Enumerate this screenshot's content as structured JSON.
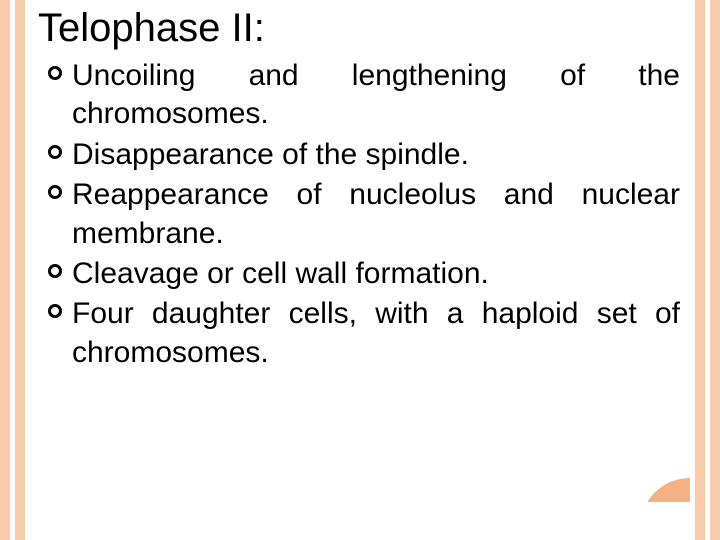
{
  "title": "Telophase II:",
  "bullets": [
    "Uncoiling and lengthening of the chromosomes.",
    "Disappearance of the spindle.",
    "Reappearance of nucleolus and nuclear membrane.",
    " Cleavage or cell wall formation.",
    " Four daughter cells,  with a haploid set of chromosomes."
  ],
  "colors": {
    "stripe": "#f9cbad",
    "corner": "#f4b183",
    "text": "#000000",
    "background": "#ffffff"
  }
}
